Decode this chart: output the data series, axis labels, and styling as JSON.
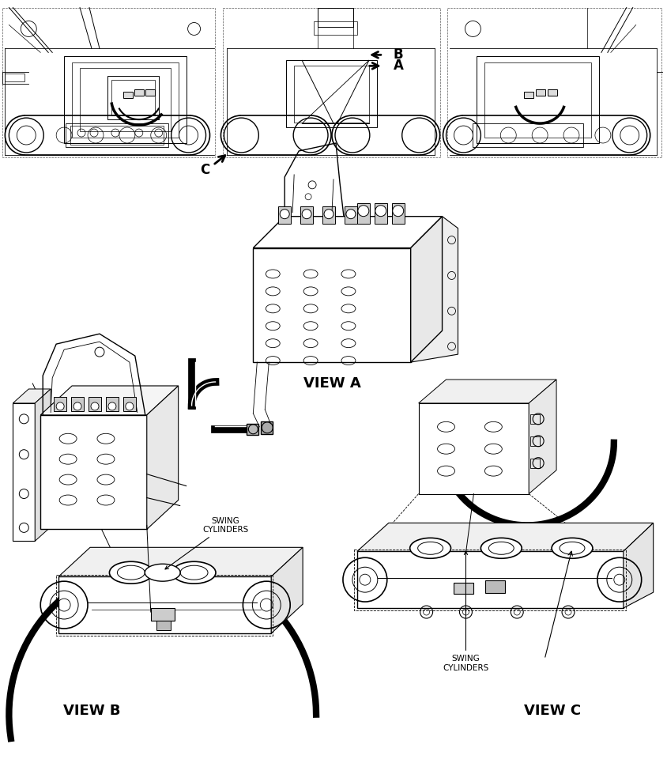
{
  "background_color": "#ffffff",
  "line_color": "#000000",
  "figsize": [
    8.45,
    9.65
  ],
  "dpi": 100,
  "labels": {
    "view_a": "VIEW A",
    "view_b": "VIEW B",
    "view_c": "VIEW C",
    "swing_cylinders_1": "SWING\nCYLINDERS",
    "swing_cylinders_2": "SWING\nCYLINDERS",
    "label_a": "A",
    "label_b": "B",
    "label_c": "C"
  }
}
